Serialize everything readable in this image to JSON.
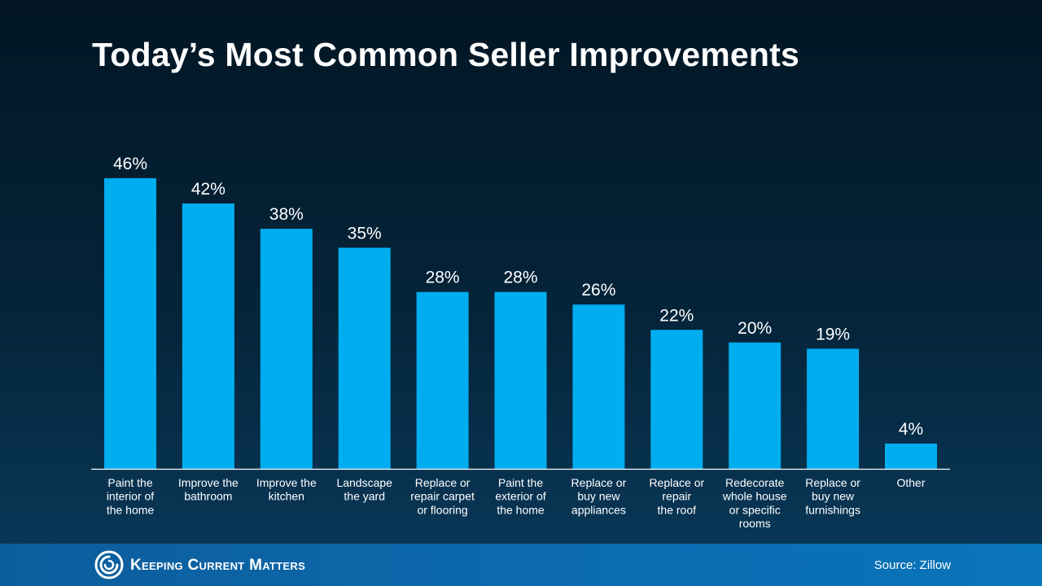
{
  "header": {
    "title": "Today’s Most Common Seller Improvements"
  },
  "footer": {
    "brand": "Keeping Current Matters",
    "source": "Source: Zillow"
  },
  "colors": {
    "bar": "#00adef",
    "axis": "#ffffff",
    "text": "#ffffff"
  },
  "chart_data": {
    "type": "bar",
    "title": "Today’s Most Common Seller Improvements",
    "xlabel": "",
    "ylabel": "",
    "ylim": [
      0,
      50
    ],
    "grid": false,
    "categories": [
      [
        "Paint the",
        "interior of",
        "the home"
      ],
      [
        "Improve the",
        "bathroom"
      ],
      [
        "Improve the",
        "kitchen"
      ],
      [
        "Landscape",
        "the yard"
      ],
      [
        "Replace or",
        "repair carpet",
        "or flooring"
      ],
      [
        "Paint the",
        "exterior of",
        "the home"
      ],
      [
        "Replace or",
        "buy new",
        "appliances"
      ],
      [
        "Replace or",
        "repair",
        "the roof"
      ],
      [
        "Redecorate",
        "whole house",
        "or specific",
        "rooms"
      ],
      [
        "Replace or",
        "buy new",
        "furnishings"
      ],
      [
        "Other"
      ]
    ],
    "values": [
      46,
      42,
      38,
      35,
      28,
      28,
      26,
      22,
      20,
      19,
      4
    ],
    "data_labels": [
      "46%",
      "42%",
      "38%",
      "35%",
      "28%",
      "28%",
      "26%",
      "22%",
      "20%",
      "19%",
      "4%"
    ]
  }
}
